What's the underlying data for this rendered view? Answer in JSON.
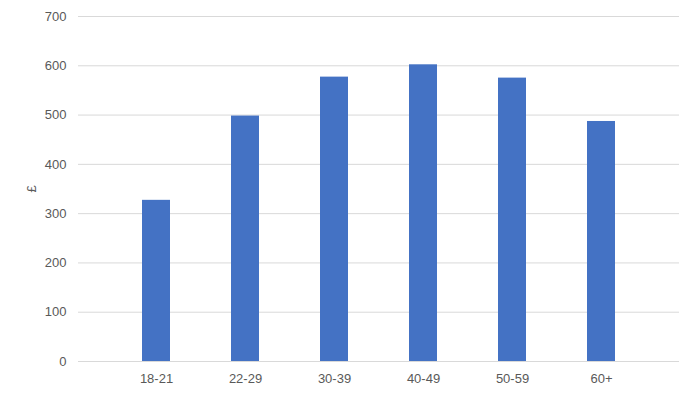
{
  "chart_data": {
    "type": "bar",
    "categories": [
      "18-21",
      "22-29",
      "30-39",
      "40-49",
      "50-59",
      "60+"
    ],
    "values": [
      327,
      498,
      577,
      602,
      575,
      487
    ],
    "color": "#4472c4",
    "ylabel": "£",
    "ylim": [
      0,
      700
    ],
    "yticks": [
      0,
      100,
      200,
      300,
      400,
      500,
      600,
      700
    ],
    "grid": true
  }
}
